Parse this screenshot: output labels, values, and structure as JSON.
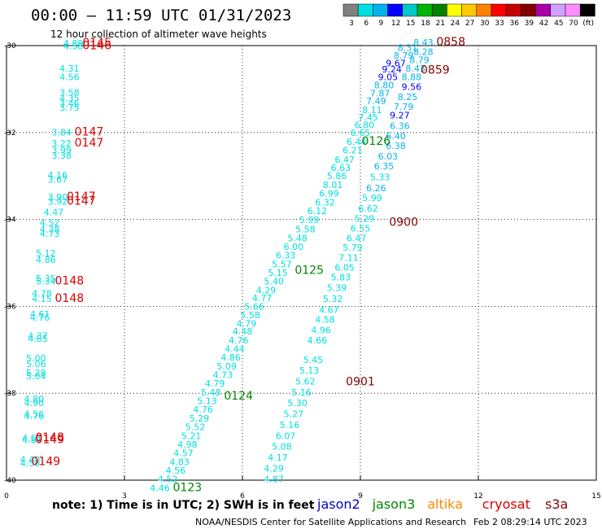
{
  "header": {
    "title": "00:00 – 11:59 UTC 01/31/2023",
    "subtitle": "12 hour collection of altimeter wave heights"
  },
  "color_scale": {
    "colors": [
      "#808080",
      "#00e0e0",
      "#00b4f0",
      "#0000ff",
      "#00c8c8",
      "#00b400",
      "#008200",
      "#ffff00",
      "#ffc800",
      "#ff8200",
      "#ff0000",
      "#c80000",
      "#820000",
      "#aa00aa",
      "#d2a0ff",
      "#ff8cff",
      "#000000"
    ],
    "labels": [
      "3",
      "6",
      "9",
      "12",
      "15",
      "18",
      "21",
      "24",
      "27",
      "30",
      "33",
      "36",
      "39",
      "42",
      "45",
      "70",
      "(ft)"
    ]
  },
  "note": "note: 1) Time is in UTC; 2) SWH is in feet",
  "legend": [
    {
      "label": "jason2",
      "color": "#0000cc"
    },
    {
      "label": "jason3",
      "color": "#008800"
    },
    {
      "label": "altika",
      "color": "#ff8800"
    },
    {
      "label": "cryosat",
      "color": "#dd0000"
    },
    {
      "label": "s3a",
      "color": "#880000"
    }
  ],
  "footer": {
    "left": "NOAA/NESDIS Center for Satellite Applications and Research",
    "right": "Feb  2 08:29:14 UTC 2023"
  },
  "chart_data": {
    "type": "scatter",
    "xlim": [
      0,
      15
    ],
    "ylim": [
      -40,
      -30
    ],
    "x_ticks": [
      "0",
      "3",
      "6",
      "9",
      "12",
      "15"
    ],
    "y_ticks": [
      "-30",
      "-32",
      "-34",
      "-36",
      "-38",
      "-40"
    ],
    "grid": true,
    "series": [
      {
        "name": "jason2",
        "points": []
      },
      {
        "name": "jason3",
        "points": []
      },
      {
        "name": "altika",
        "points": []
      },
      {
        "name": "cryosat",
        "points": []
      },
      {
        "name": "s3a",
        "points": []
      }
    ],
    "swh_points": [
      {
        "x": 1.7,
        "y": -30.02,
        "v": "4.89"
      },
      {
        "x": 1.7,
        "y": -30.08,
        "v": "4.58"
      },
      {
        "x": 1.6,
        "y": -30.6,
        "v": "4.31"
      },
      {
        "x": 1.6,
        "y": -30.8,
        "v": "4.56"
      },
      {
        "x": 1.6,
        "y": -31.15,
        "v": "3.58"
      },
      {
        "x": 1.6,
        "y": -31.28,
        "v": "4.35"
      },
      {
        "x": 1.6,
        "y": -31.4,
        "v": "3.46"
      },
      {
        "x": 1.6,
        "y": -31.5,
        "v": "3.75"
      },
      {
        "x": 1.4,
        "y": -32.07,
        "v": "3.84"
      },
      {
        "x": 1.4,
        "y": -32.32,
        "v": "3.22"
      },
      {
        "x": 1.4,
        "y": -32.48,
        "v": "3.99"
      },
      {
        "x": 1.4,
        "y": -32.6,
        "v": "3.38"
      },
      {
        "x": 1.3,
        "y": -33.05,
        "v": "4.16"
      },
      {
        "x": 1.3,
        "y": -33.16,
        "v": "3.67"
      },
      {
        "x": 1.3,
        "y": -33.56,
        "v": "3.90"
      },
      {
        "x": 1.3,
        "y": -33.66,
        "v": "3.92"
      },
      {
        "x": 1.2,
        "y": -33.9,
        "v": "4.47"
      },
      {
        "x": 1.1,
        "y": -34.15,
        "v": "4.52"
      },
      {
        "x": 1.1,
        "y": -34.3,
        "v": "4.38"
      },
      {
        "x": 1.1,
        "y": -34.4,
        "v": "4.73"
      },
      {
        "x": 1.0,
        "y": -34.85,
        "v": "5.12"
      },
      {
        "x": 1.0,
        "y": -35.0,
        "v": "4.86"
      },
      {
        "x": 1.0,
        "y": -35.43,
        "v": "5.35"
      },
      {
        "x": 1.0,
        "y": -35.5,
        "v": "5.34"
      },
      {
        "x": 0.9,
        "y": -35.78,
        "v": "4.78"
      },
      {
        "x": 0.9,
        "y": -35.9,
        "v": "4.15"
      },
      {
        "x": 0.85,
        "y": -36.25,
        "v": "4.61"
      },
      {
        "x": 0.85,
        "y": -36.33,
        "v": "4.76"
      },
      {
        "x": 0.8,
        "y": -36.75,
        "v": "4.37"
      },
      {
        "x": 0.8,
        "y": -36.82,
        "v": "4.85"
      },
      {
        "x": 0.75,
        "y": -37.27,
        "v": "5.00"
      },
      {
        "x": 0.75,
        "y": -37.4,
        "v": "5.06"
      },
      {
        "x": 0.75,
        "y": -37.6,
        "v": "5.28"
      },
      {
        "x": 0.75,
        "y": -37.68,
        "v": "5.04"
      },
      {
        "x": 0.7,
        "y": -38.2,
        "v": "4.80"
      },
      {
        "x": 0.7,
        "y": -38.3,
        "v": "4.90"
      },
      {
        "x": 0.7,
        "y": -38.55,
        "v": "4.56"
      },
      {
        "x": 0.7,
        "y": -38.6,
        "v": "4.76"
      },
      {
        "x": 0.65,
        "y": -39.1,
        "v": "4.61"
      },
      {
        "x": 0.65,
        "y": -39.15,
        "v": "4.81"
      },
      {
        "x": 0.6,
        "y": -39.6,
        "v": "4.40"
      },
      {
        "x": 0.6,
        "y": -39.68,
        "v": "4.56"
      },
      {
        "x": 10.6,
        "y": -30.0,
        "v": "8.43"
      },
      {
        "x": 10.2,
        "y": -30.12,
        "v": "8.31"
      },
      {
        "x": 10.6,
        "y": -30.22,
        "v": "8.28"
      },
      {
        "x": 10.1,
        "y": -30.3,
        "v": "8.79"
      },
      {
        "x": 10.5,
        "y": -30.4,
        "v": "8.79"
      },
      {
        "x": 9.9,
        "y": -30.48,
        "v": "9.67"
      },
      {
        "x": 10.4,
        "y": -30.6,
        "v": "8.43"
      },
      {
        "x": 9.8,
        "y": -30.62,
        "v": "9.24"
      },
      {
        "x": 9.7,
        "y": -30.8,
        "v": "9.05"
      },
      {
        "x": 10.3,
        "y": -30.8,
        "v": "8.88"
      },
      {
        "x": 9.6,
        "y": -30.98,
        "v": "8.80"
      },
      {
        "x": 10.3,
        "y": -31.02,
        "v": "9.56"
      },
      {
        "x": 9.5,
        "y": -31.17,
        "v": "7.87"
      },
      {
        "x": 10.2,
        "y": -31.25,
        "v": "8.25"
      },
      {
        "x": 9.4,
        "y": -31.35,
        "v": "7.49"
      },
      {
        "x": 10.1,
        "y": -31.48,
        "v": "7.79"
      },
      {
        "x": 9.3,
        "y": -31.55,
        "v": "8.11"
      },
      {
        "x": 10.0,
        "y": -31.68,
        "v": "9.27"
      },
      {
        "x": 9.2,
        "y": -31.72,
        "v": "7.45"
      },
      {
        "x": 9.1,
        "y": -31.9,
        "v": "6.80"
      },
      {
        "x": 10.0,
        "y": -31.92,
        "v": "6.36"
      },
      {
        "x": 9.0,
        "y": -32.08,
        "v": "6.65"
      },
      {
        "x": 9.9,
        "y": -32.15,
        "v": "6.40"
      },
      {
        "x": 8.9,
        "y": -32.28,
        "v": "6.44"
      },
      {
        "x": 9.9,
        "y": -32.38,
        "v": "6.38"
      },
      {
        "x": 8.8,
        "y": -32.48,
        "v": "6.21"
      },
      {
        "x": 9.7,
        "y": -32.62,
        "v": "6.03"
      },
      {
        "x": 8.6,
        "y": -32.7,
        "v": "6.47"
      },
      {
        "x": 9.6,
        "y": -32.85,
        "v": "6.35"
      },
      {
        "x": 8.5,
        "y": -32.88,
        "v": "6.63"
      },
      {
        "x": 8.4,
        "y": -33.07,
        "v": "5.86"
      },
      {
        "x": 9.5,
        "y": -33.1,
        "v": "5.33"
      },
      {
        "x": 8.3,
        "y": -33.28,
        "v": "8.01"
      },
      {
        "x": 9.4,
        "y": -33.35,
        "v": "6.26"
      },
      {
        "x": 8.2,
        "y": -33.47,
        "v": "6.99"
      },
      {
        "x": 9.3,
        "y": -33.58,
        "v": "5.99"
      },
      {
        "x": 8.1,
        "y": -33.68,
        "v": "6.32"
      },
      {
        "x": 9.2,
        "y": -33.82,
        "v": "6.62"
      },
      {
        "x": 7.9,
        "y": -33.88,
        "v": "6.12"
      },
      {
        "x": 9.1,
        "y": -34.05,
        "v": "5.29"
      },
      {
        "x": 7.7,
        "y": -34.08,
        "v": "5.99"
      },
      {
        "x": 9.0,
        "y": -34.28,
        "v": "6.55"
      },
      {
        "x": 7.6,
        "y": -34.3,
        "v": "5.58"
      },
      {
        "x": 8.9,
        "y": -34.5,
        "v": "6.47"
      },
      {
        "x": 7.4,
        "y": -34.5,
        "v": "5.48"
      },
      {
        "x": 7.3,
        "y": -34.7,
        "v": "6.00"
      },
      {
        "x": 8.8,
        "y": -34.72,
        "v": "5.79"
      },
      {
        "x": 7.1,
        "y": -34.9,
        "v": "6.33"
      },
      {
        "x": 8.7,
        "y": -34.95,
        "v": "7.11"
      },
      {
        "x": 7.0,
        "y": -35.1,
        "v": "5.57"
      },
      {
        "x": 8.6,
        "y": -35.18,
        "v": "6.05"
      },
      {
        "x": 6.9,
        "y": -35.3,
        "v": "5.15"
      },
      {
        "x": 8.5,
        "y": -35.4,
        "v": "5.83"
      },
      {
        "x": 6.8,
        "y": -35.5,
        "v": "5.40"
      },
      {
        "x": 8.4,
        "y": -35.65,
        "v": "5.39"
      },
      {
        "x": 6.6,
        "y": -35.7,
        "v": "4.29"
      },
      {
        "x": 6.5,
        "y": -35.88,
        "v": "4.77"
      },
      {
        "x": 8.3,
        "y": -35.9,
        "v": "5.32"
      },
      {
        "x": 6.3,
        "y": -36.08,
        "v": "5.66"
      },
      {
        "x": 8.2,
        "y": -36.15,
        "v": "4.67"
      },
      {
        "x": 6.2,
        "y": -36.27,
        "v": "5.58"
      },
      {
        "x": 8.1,
        "y": -36.38,
        "v": "4.58"
      },
      {
        "x": 6.1,
        "y": -36.47,
        "v": "4.79"
      },
      {
        "x": 6.0,
        "y": -36.65,
        "v": "4.48"
      },
      {
        "x": 8.0,
        "y": -36.62,
        "v": "4.96"
      },
      {
        "x": 5.9,
        "y": -36.85,
        "v": "4.76"
      },
      {
        "x": 7.9,
        "y": -36.85,
        "v": "4.66"
      },
      {
        "x": 5.8,
        "y": -37.05,
        "v": "4.44"
      },
      {
        "x": 5.7,
        "y": -37.25,
        "v": "4.86"
      },
      {
        "x": 7.8,
        "y": -37.3,
        "v": "5.45"
      },
      {
        "x": 5.6,
        "y": -37.45,
        "v": "5.09"
      },
      {
        "x": 7.7,
        "y": -37.55,
        "v": "5.13"
      },
      {
        "x": 5.5,
        "y": -37.65,
        "v": "4.73"
      },
      {
        "x": 7.6,
        "y": -37.8,
        "v": "5.62"
      },
      {
        "x": 5.3,
        "y": -37.85,
        "v": "4.79"
      },
      {
        "x": 7.5,
        "y": -38.05,
        "v": "5.16"
      },
      {
        "x": 5.2,
        "y": -38.05,
        "v": "5.48"
      },
      {
        "x": 5.1,
        "y": -38.25,
        "v": "5.13"
      },
      {
        "x": 7.4,
        "y": -38.3,
        "v": "5.30"
      },
      {
        "x": 5.0,
        "y": -38.45,
        "v": "4.76"
      },
      {
        "x": 4.9,
        "y": -38.65,
        "v": "5.29"
      },
      {
        "x": 7.3,
        "y": -38.55,
        "v": "5.27"
      },
      {
        "x": 4.8,
        "y": -38.85,
        "v": "5.52"
      },
      {
        "x": 7.2,
        "y": -38.8,
        "v": "5.16"
      },
      {
        "x": 4.7,
        "y": -39.05,
        "v": "5.21"
      },
      {
        "x": 7.1,
        "y": -39.05,
        "v": "6.07"
      },
      {
        "x": 4.6,
        "y": -39.25,
        "v": "4.98"
      },
      {
        "x": 7.0,
        "y": -39.3,
        "v": "5.08"
      },
      {
        "x": 4.5,
        "y": -39.45,
        "v": "4.57"
      },
      {
        "x": 6.9,
        "y": -39.55,
        "v": "4.17"
      },
      {
        "x": 4.4,
        "y": -39.65,
        "v": "4.83"
      },
      {
        "x": 6.8,
        "y": -39.8,
        "v": "4.29"
      },
      {
        "x": 4.3,
        "y": -39.85,
        "v": "4.56"
      },
      {
        "x": 6.8,
        "y": -40.05,
        "v": "4.87"
      },
      {
        "x": 4.1,
        "y": -40.05,
        "v": "4.52"
      },
      {
        "x": 3.9,
        "y": -40.25,
        "v": "4.46"
      }
    ],
    "pass_labels": [
      {
        "x": 2.3,
        "y": -30.02,
        "label": "0145",
        "color": "#dd0000"
      },
      {
        "x": 2.3,
        "y": -30.08,
        "label": "0146",
        "color": "#dd0000"
      },
      {
        "x": 2.1,
        "y": -32.07,
        "label": "0147",
        "color": "#dd0000"
      },
      {
        "x": 2.1,
        "y": -32.32,
        "label": "0147",
        "color": "#dd0000"
      },
      {
        "x": 1.9,
        "y": -33.56,
        "label": "0147",
        "color": "#dd0000"
      },
      {
        "x": 1.9,
        "y": -33.66,
        "label": "0147",
        "color": "#dd0000"
      },
      {
        "x": 1.6,
        "y": -35.5,
        "label": "0148",
        "color": "#dd0000"
      },
      {
        "x": 1.6,
        "y": -35.9,
        "label": "0148",
        "color": "#dd0000"
      },
      {
        "x": 1.1,
        "y": -39.1,
        "label": "0148",
        "color": "#dd0000"
      },
      {
        "x": 1.1,
        "y": -39.15,
        "label": "0149",
        "color": "#dd0000"
      },
      {
        "x": 1.0,
        "y": -39.65,
        "label": "0149",
        "color": "#dd0000"
      },
      {
        "x": 11.3,
        "y": -30.0,
        "label": "0858",
        "color": "#880000"
      },
      {
        "x": 10.9,
        "y": -30.65,
        "label": "0859",
        "color": "#880000"
      },
      {
        "x": 9.4,
        "y": -32.28,
        "label": "0126",
        "color": "#008800"
      },
      {
        "x": 10.1,
        "y": -34.15,
        "label": "0900",
        "color": "#880000"
      },
      {
        "x": 7.7,
        "y": -35.25,
        "label": "0125",
        "color": "#008800"
      },
      {
        "x": 9.0,
        "y": -37.82,
        "label": "0901",
        "color": "#880000"
      },
      {
        "x": 5.9,
        "y": -38.15,
        "label": "0124",
        "color": "#008800"
      },
      {
        "x": 4.6,
        "y": -40.25,
        "label": "0123",
        "color": "#008800"
      }
    ]
  }
}
